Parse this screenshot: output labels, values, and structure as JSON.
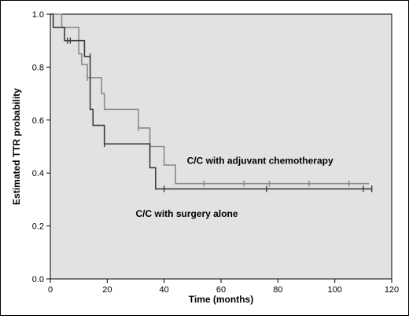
{
  "chart_data": {
    "type": "line",
    "title": "",
    "xlabel": "Time (months)",
    "ylabel": "Estimated TTR probability",
    "xlim": [
      0,
      120
    ],
    "ylim": [
      0.0,
      1.0
    ],
    "x_ticks": [
      0,
      20,
      40,
      60,
      80,
      100,
      120
    ],
    "y_ticks": [
      0.0,
      0.2,
      0.4,
      0.6,
      0.8,
      1.0
    ],
    "y_tick_labels": [
      "0.0",
      "0.2",
      "0.4",
      "0.6",
      "0.8",
      "1.0"
    ],
    "grid": false,
    "plot_background": "#e2e2e2",
    "series": [
      {
        "name": "C/C with adjuvant chemotherapy",
        "color": "#8a8a8a",
        "step_x": [
          0,
          2,
          4,
          9,
          10,
          11,
          13,
          16,
          18,
          19,
          31,
          35,
          40,
          44,
          112
        ],
        "step_y": [
          1.0,
          1.0,
          0.95,
          0.95,
          0.85,
          0.81,
          0.76,
          0.76,
          0.7,
          0.64,
          0.57,
          0.5,
          0.43,
          0.36,
          0.36
        ],
        "censored_x": [
          13,
          31,
          54,
          68,
          77,
          91,
          105
        ],
        "censored_y": [
          0.76,
          0.57,
          0.36,
          0.36,
          0.36,
          0.36,
          0.36
        ]
      },
      {
        "name": "C/C with surgery alone",
        "color": "#3c3c3c",
        "step_x": [
          0,
          1,
          5,
          8,
          12,
          14,
          15,
          19,
          35,
          37,
          113
        ],
        "step_y": [
          1.0,
          0.95,
          0.9,
          0.9,
          0.84,
          0.64,
          0.58,
          0.51,
          0.42,
          0.34,
          0.34
        ],
        "censored_x": [
          6,
          7,
          14,
          19,
          40,
          76,
          110,
          113
        ],
        "censored_y": [
          0.9,
          0.9,
          0.84,
          0.51,
          0.34,
          0.34,
          0.34,
          0.34
        ]
      }
    ],
    "annotations": [
      {
        "text": "C/C with adjuvant chemotherapy",
        "x": 48,
        "y": 0.435
      },
      {
        "text": "C/C with surgery alone",
        "x": 30,
        "y": 0.235
      }
    ]
  }
}
